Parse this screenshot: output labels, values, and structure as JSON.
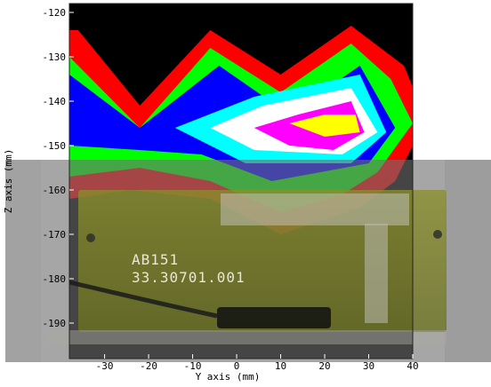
{
  "chart_data": {
    "type": "filled-contour",
    "xlabel": "Y axis (mm)",
    "ylabel": "Z axis (mm)",
    "xlim": [
      -38,
      40
    ],
    "ylim": [
      -198,
      -118
    ],
    "xticks": [
      -30,
      -20,
      -10,
      0,
      10,
      20,
      30,
      40
    ],
    "yticks": [
      -120,
      -130,
      -140,
      -150,
      -160,
      -170,
      -180,
      -190
    ],
    "background_color": "#000000",
    "levels": [
      {
        "color": "#ff0000",
        "polygon": [
          [
            -38,
            -124
          ],
          [
            -36,
            -124
          ],
          [
            -22,
            -141
          ],
          [
            -6,
            -124
          ],
          [
            10,
            -134
          ],
          [
            26,
            -123
          ],
          [
            38,
            -132
          ],
          [
            43,
            -144
          ],
          [
            36,
            -158
          ],
          [
            28,
            -164
          ],
          [
            10,
            -170
          ],
          [
            -6,
            -162
          ],
          [
            -24,
            -160
          ],
          [
            -38,
            -162
          ]
        ]
      },
      {
        "color": "#00ff00",
        "polygon": [
          [
            -38,
            -130
          ],
          [
            -22,
            -146
          ],
          [
            -6,
            -128
          ],
          [
            10,
            -138
          ],
          [
            26,
            -127
          ],
          [
            35,
            -135
          ],
          [
            40,
            -145
          ],
          [
            32,
            -156
          ],
          [
            24,
            -161
          ],
          [
            10,
            -165
          ],
          [
            -6,
            -158
          ],
          [
            -22,
            -155
          ],
          [
            -38,
            -157
          ]
        ]
      },
      {
        "color": "#0000ff",
        "polygon": [
          [
            -38,
            -134
          ],
          [
            -22,
            -146
          ],
          [
            -4,
            -132
          ],
          [
            12,
            -143
          ],
          [
            28,
            -132
          ],
          [
            36,
            -146
          ],
          [
            30,
            -154
          ],
          [
            8,
            -158
          ],
          [
            -8,
            -152
          ],
          [
            -22,
            -151
          ],
          [
            -38,
            -150
          ]
        ]
      },
      {
        "color": "#00ffff",
        "polygon": [
          [
            -14,
            -146
          ],
          [
            4,
            -139
          ],
          [
            28,
            -134
          ],
          [
            34,
            -147
          ],
          [
            26,
            -154
          ],
          [
            2,
            -154
          ]
        ]
      },
      {
        "color": "#ffffff",
        "polygon": [
          [
            -6,
            -146
          ],
          [
            6,
            -141
          ],
          [
            26,
            -137
          ],
          [
            32,
            -147
          ],
          [
            24,
            -152
          ],
          [
            4,
            -151
          ]
        ]
      },
      {
        "color": "#ff00ff",
        "polygon": [
          [
            4,
            -146
          ],
          [
            14,
            -143
          ],
          [
            26,
            -140
          ],
          [
            29,
            -147
          ],
          [
            22,
            -151
          ],
          [
            12,
            -150
          ]
        ]
      },
      {
        "color": "#ffff00",
        "polygon": [
          [
            12,
            -145
          ],
          [
            20,
            -143
          ],
          [
            27,
            -143
          ],
          [
            28,
            -147
          ],
          [
            20,
            -148
          ]
        ]
      }
    ],
    "overlay_image": {
      "description": "photograph of a circuit board behind the contour plot",
      "board_label_line1": "AB151",
      "board_label_line2": "33.30701.001"
    }
  }
}
